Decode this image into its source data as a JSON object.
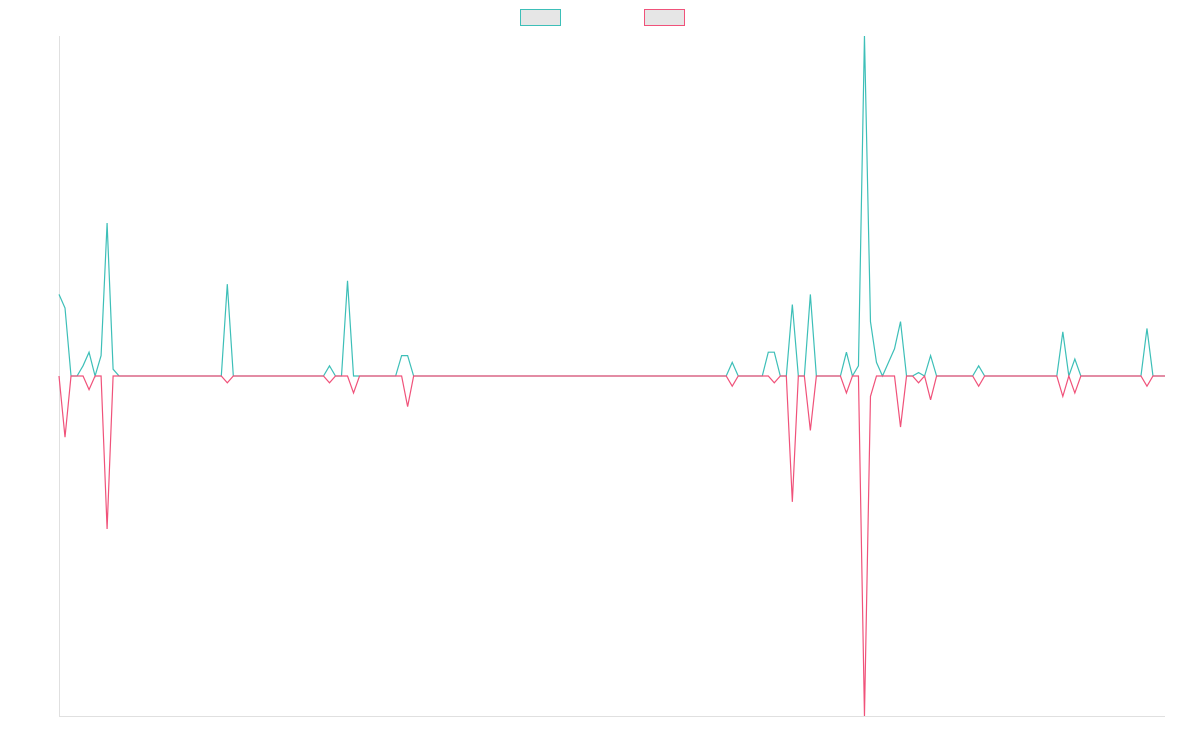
{
  "chart_data": {
    "type": "line",
    "categories": [
      null,
      null,
      null,
      null,
      null,
      null,
      null,
      null,
      null,
      null,
      null,
      null,
      null,
      null,
      null,
      null,
      null,
      null,
      null,
      null,
      null,
      null,
      null,
      null,
      null,
      null,
      null,
      null,
      null,
      null,
      null,
      null,
      null,
      null,
      null,
      null,
      null,
      null,
      null,
      null,
      null,
      null,
      null,
      null,
      null,
      null,
      null,
      null,
      null,
      null,
      null,
      null,
      null,
      null,
      null,
      null,
      null,
      null,
      null,
      null,
      null,
      null,
      null,
      null,
      null,
      null,
      null,
      null,
      null,
      null,
      null,
      null,
      null,
      null,
      null,
      null,
      null,
      null,
      null,
      null,
      null,
      null,
      null,
      null,
      null,
      null,
      null,
      null,
      null,
      null,
      null,
      null,
      null,
      null,
      null,
      null,
      null,
      null,
      null,
      null,
      null,
      null,
      null,
      null,
      null,
      null,
      null,
      null,
      null,
      null,
      null,
      null,
      null,
      null,
      null,
      null,
      null,
      null,
      null,
      null,
      null,
      null,
      null,
      null,
      null,
      null,
      null,
      null,
      null,
      null,
      null,
      null,
      null,
      null,
      null,
      null,
      null,
      null,
      null,
      null,
      null,
      null,
      null,
      null,
      null,
      null,
      null,
      null,
      null,
      null,
      null,
      null,
      null,
      null,
      null,
      null,
      null,
      null,
      null,
      null,
      null,
      null,
      null,
      null,
      null,
      null,
      null,
      null,
      null,
      null,
      null,
      null,
      null,
      null,
      null,
      null,
      null,
      null,
      null,
      null,
      null,
      null,
      null,
      null,
      null
    ],
    "series": [
      {
        "color": "#3dbfb8",
        "values": [
          24,
          20,
          0,
          0,
          3,
          7,
          0,
          6,
          45,
          2,
          0,
          0,
          0,
          0,
          0,
          0,
          0,
          0,
          0,
          0,
          0,
          0,
          0,
          0,
          0,
          0,
          0,
          0,
          27,
          0,
          0,
          0,
          0,
          0,
          0,
          0,
          0,
          0,
          0,
          0,
          0,
          0,
          0,
          0,
          0,
          3,
          0,
          0,
          28,
          0,
          0,
          0,
          0,
          0,
          0,
          0,
          0,
          6,
          6,
          0,
          0,
          0,
          0,
          0,
          0,
          0,
          0,
          0,
          0,
          0,
          0,
          0,
          0,
          0,
          0,
          0,
          0,
          0,
          0,
          0,
          0,
          0,
          0,
          0,
          0,
          0,
          0,
          0,
          0,
          0,
          0,
          0,
          0,
          0,
          0,
          0,
          0,
          0,
          0,
          0,
          0,
          0,
          0,
          0,
          0,
          0,
          0,
          0,
          0,
          0,
          0,
          0,
          4,
          0,
          0,
          0,
          0,
          0,
          7,
          7,
          0,
          0,
          21,
          0,
          0,
          24,
          0,
          0,
          0,
          0,
          0,
          7,
          0,
          3,
          100,
          16,
          4,
          0,
          4,
          8,
          16,
          0,
          0,
          1,
          0,
          6,
          0,
          0,
          0,
          0,
          0,
          0,
          0,
          3,
          0,
          0,
          0,
          0,
          0,
          0,
          0,
          0,
          0,
          0,
          0,
          0,
          0,
          13,
          0,
          5,
          0,
          0,
          0,
          0,
          0,
          0,
          0,
          0,
          0,
          0,
          0,
          14,
          0,
          0,
          0
        ]
      },
      {
        "color": "#f0527a",
        "values": [
          0,
          -18,
          0,
          0,
          0,
          -4,
          0,
          0,
          -45,
          0,
          0,
          0,
          0,
          0,
          0,
          0,
          0,
          0,
          0,
          0,
          0,
          0,
          0,
          0,
          0,
          0,
          0,
          0,
          -2,
          0,
          0,
          0,
          0,
          0,
          0,
          0,
          0,
          0,
          0,
          0,
          0,
          0,
          0,
          0,
          0,
          -2,
          0,
          0,
          0,
          -5,
          0,
          0,
          0,
          0,
          0,
          0,
          0,
          0,
          -9,
          0,
          0,
          0,
          0,
          0,
          0,
          0,
          0,
          0,
          0,
          0,
          0,
          0,
          0,
          0,
          0,
          0,
          0,
          0,
          0,
          0,
          0,
          0,
          0,
          0,
          0,
          0,
          0,
          0,
          0,
          0,
          0,
          0,
          0,
          0,
          0,
          0,
          0,
          0,
          0,
          0,
          0,
          0,
          0,
          0,
          0,
          0,
          0,
          0,
          0,
          0,
          0,
          0,
          -3,
          0,
          0,
          0,
          0,
          0,
          0,
          -2,
          0,
          0,
          -37,
          0,
          0,
          -16,
          0,
          0,
          0,
          0,
          0,
          -5,
          0,
          0,
          -100,
          -6,
          0,
          0,
          0,
          0,
          -15,
          0,
          0,
          -2,
          0,
          -7,
          0,
          0,
          0,
          0,
          0,
          0,
          0,
          -3,
          0,
          0,
          0,
          0,
          0,
          0,
          0,
          0,
          0,
          0,
          0,
          0,
          0,
          -6,
          0,
          -5,
          0,
          0,
          0,
          0,
          0,
          0,
          0,
          0,
          0,
          0,
          0,
          -3,
          0,
          0,
          0
        ]
      }
    ],
    "ylim": [
      -100,
      100
    ],
    "legend": "top"
  }
}
